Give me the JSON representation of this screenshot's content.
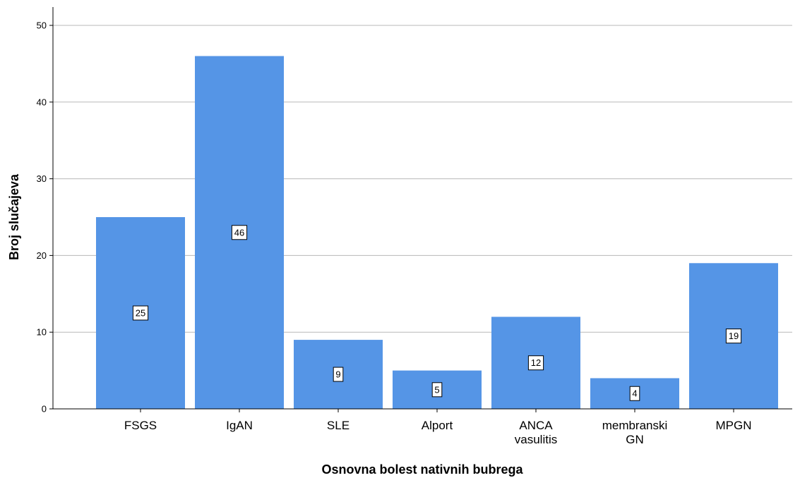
{
  "chart_data": {
    "type": "bar",
    "title": "",
    "xlabel": "Osnovna bolest nativnih bubrega",
    "ylabel": "Broj slučajeva",
    "categories": [
      [
        "FSGS"
      ],
      [
        "IgAN"
      ],
      [
        "SLE"
      ],
      [
        "Alport"
      ],
      [
        "ANCA",
        "vasulitis"
      ],
      [
        "membranski",
        "GN"
      ],
      [
        "MPGN"
      ]
    ],
    "values": [
      25,
      46,
      9,
      5,
      12,
      4,
      19
    ],
    "ylim": [
      0,
      52
    ],
    "yticks": [
      0,
      10,
      20,
      30,
      40,
      50
    ],
    "grid": true,
    "legend": "none",
    "bar_color": "#5595e6",
    "data_labels": true
  }
}
